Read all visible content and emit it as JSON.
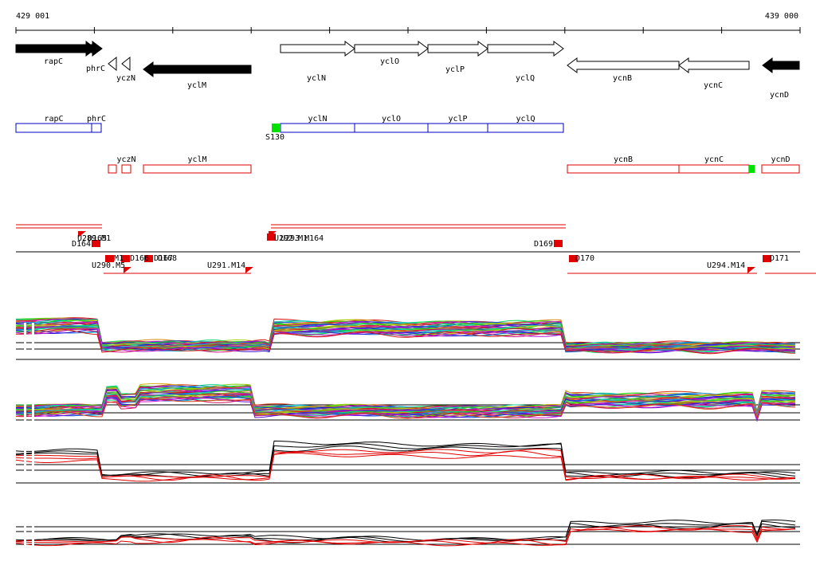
{
  "axis": {
    "start": "429 001",
    "end": "439 000"
  },
  "genes": [
    "rapC",
    "phrC",
    "yczN",
    "yclM",
    "yclN",
    "yclO",
    "yclP",
    "yclQ",
    "ycnB",
    "ycnC",
    "ycnD"
  ],
  "forward_boxes": [
    "rapC",
    "phrC",
    "yclN",
    "yclO",
    "yclP",
    "yclQ"
  ],
  "forward_site": "S130",
  "reverse_boxes": [
    "yczN",
    "yclM",
    "ycnB",
    "ycnC",
    "ycnD"
  ],
  "features": [
    "D164",
    "U289.M1",
    "D165",
    "U292.M1",
    "U293.M164",
    "D169",
    "M1",
    "D166",
    "D167",
    "D168",
    "U290.M5",
    "U291.M14",
    "D170",
    "U294.M14",
    "D171"
  ]
}
